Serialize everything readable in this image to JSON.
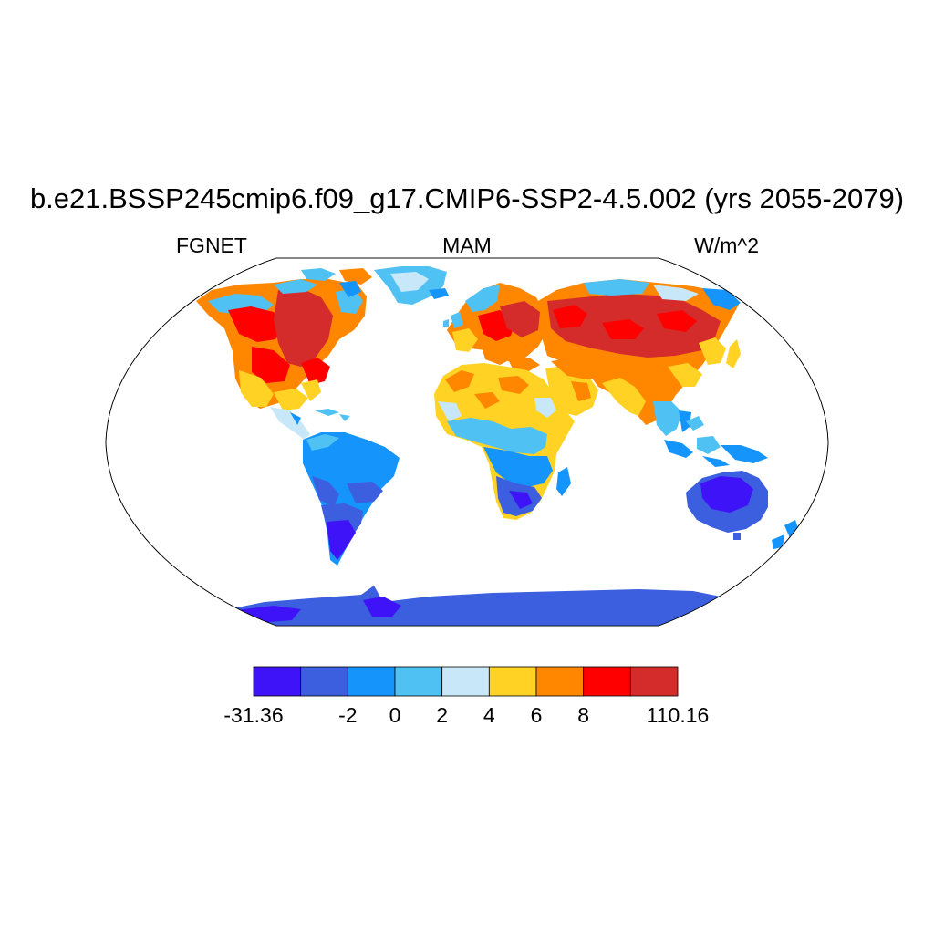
{
  "title": "b.e21.BSSP245cmip6.f09_g17.CMIP6-SSP2-4.5.002 (yrs 2055-2079)",
  "subtitle_left": "FGNET",
  "subtitle_center": "MAM",
  "subtitle_right": "W/m^2",
  "colorbar": {
    "labels": [
      "-31.36",
      "-2",
      "0",
      "2",
      "4",
      "6",
      "8",
      "110.16"
    ],
    "colors": [
      "#3f13f7",
      "#3c5fe0",
      "#1595fb",
      "#50c1f3",
      "#c8e8f9",
      "#ffd224",
      "#ff8700",
      "#ff0000",
      "#d42b2b"
    ]
  },
  "map": {
    "projection": "Robinson",
    "colors": {
      "dark_red": "#d42b2b",
      "red": "#ff0000",
      "orange": "#ff8700",
      "yellow": "#ffd224",
      "pale_blue": "#c8e8f9",
      "light_blue": "#50c1f3",
      "blue": "#1595fb",
      "royal_blue": "#3c5fe0",
      "violet": "#3f13f7"
    }
  }
}
